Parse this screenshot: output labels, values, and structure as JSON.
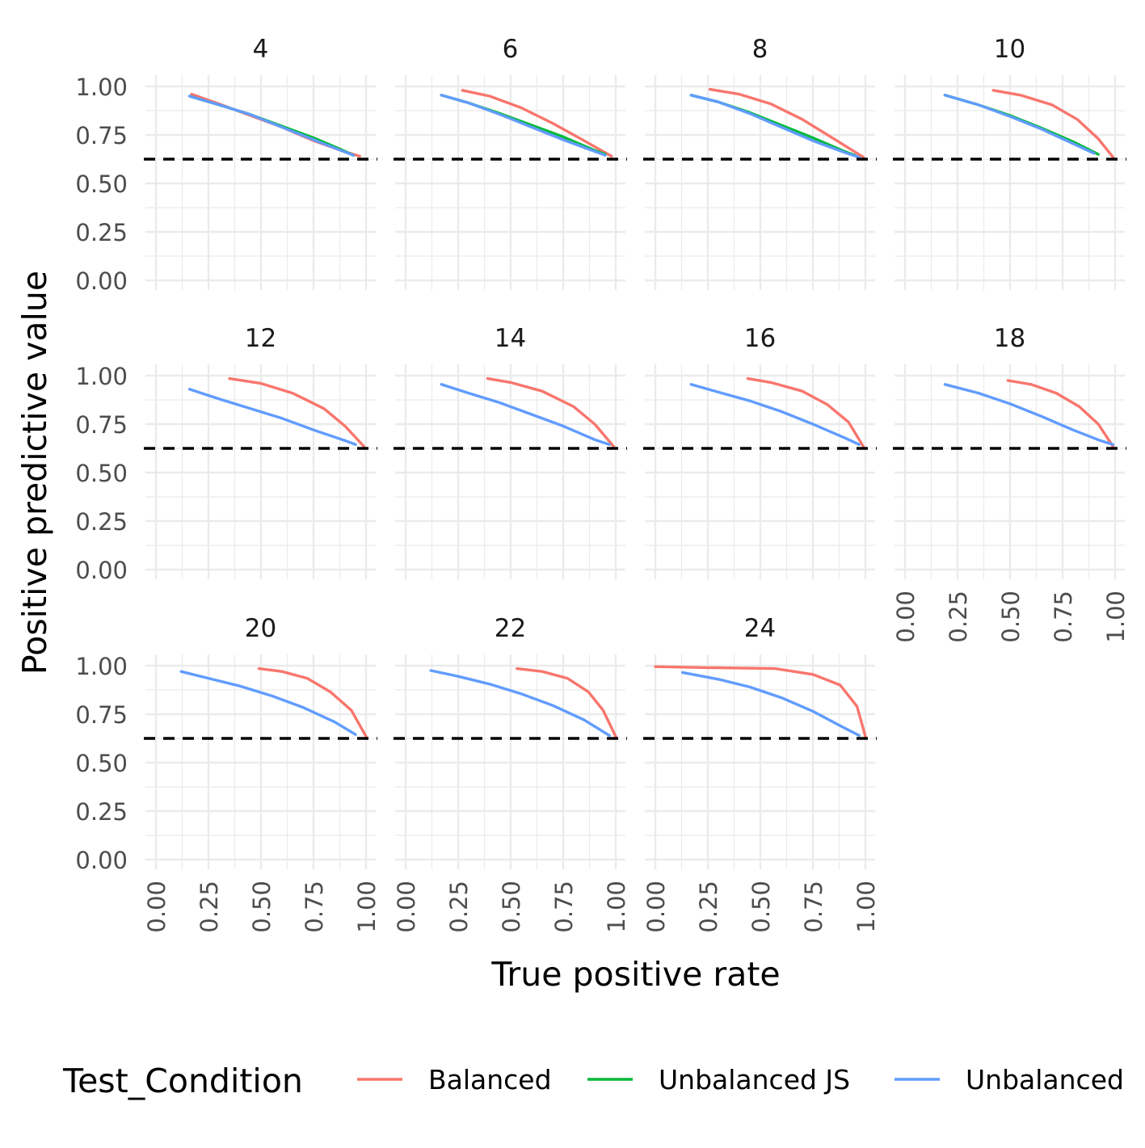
{
  "chart_data": {
    "type": "line",
    "xlabel": "True positive rate",
    "ylabel": "Positive predictive value",
    "xlim": [
      0,
      1
    ],
    "ylim": [
      0,
      1
    ],
    "x_ticks": [
      "0.00",
      "0.25",
      "0.50",
      "0.75",
      "1.00"
    ],
    "y_ticks": [
      "0.00",
      "0.25",
      "0.50",
      "0.75",
      "1.00"
    ],
    "reference_line": {
      "y": 0.625,
      "style": "dashed",
      "color": "#000000"
    },
    "grid": true,
    "legend": {
      "title": "Test_Condition",
      "position": "bottom",
      "entries": [
        {
          "name": "Balanced",
          "color": "#F8766D"
        },
        {
          "name": "Unbalanced JS",
          "color": "#00BA38"
        },
        {
          "name": "Unbalanced",
          "color": "#619CFF"
        }
      ]
    },
    "facets": [
      {
        "label": "4",
        "series": [
          {
            "name": "Balanced",
            "x": [
              0.17,
              0.3,
              0.45,
              0.6,
              0.75,
              0.88,
              0.97
            ],
            "y": [
              0.96,
              0.91,
              0.85,
              0.79,
              0.72,
              0.67,
              0.64
            ]
          },
          {
            "name": "Unbalanced JS",
            "x": [
              0.16,
              0.3,
              0.45,
              0.6,
              0.75,
              0.88,
              0.94
            ],
            "y": [
              0.95,
              0.905,
              0.855,
              0.795,
              0.735,
              0.675,
              0.645
            ]
          },
          {
            "name": "Unbalanced",
            "x": [
              0.16,
              0.3,
              0.45,
              0.6,
              0.75,
              0.88,
              0.94
            ],
            "y": [
              0.95,
              0.905,
              0.855,
              0.79,
              0.725,
              0.67,
              0.645
            ]
          }
        ]
      },
      {
        "label": "6",
        "series": [
          {
            "name": "Balanced",
            "x": [
              0.27,
              0.4,
              0.55,
              0.7,
              0.85,
              0.98
            ],
            "y": [
              0.98,
              0.95,
              0.89,
              0.81,
              0.72,
              0.64
            ]
          },
          {
            "name": "Unbalanced JS",
            "x": [
              0.17,
              0.3,
              0.45,
              0.6,
              0.75,
              0.9,
              0.95
            ],
            "y": [
              0.955,
              0.915,
              0.86,
              0.8,
              0.74,
              0.67,
              0.65
            ]
          },
          {
            "name": "Unbalanced",
            "x": [
              0.17,
              0.3,
              0.45,
              0.6,
              0.75,
              0.9,
              0.95
            ],
            "y": [
              0.955,
              0.915,
              0.855,
              0.79,
              0.725,
              0.665,
              0.645
            ]
          }
        ]
      },
      {
        "label": "8",
        "series": [
          {
            "name": "Balanced",
            "x": [
              0.26,
              0.4,
              0.55,
              0.7,
              0.85,
              0.99
            ],
            "y": [
              0.985,
              0.96,
              0.91,
              0.83,
              0.73,
              0.635
            ]
          },
          {
            "name": "Unbalanced JS",
            "x": [
              0.17,
              0.3,
              0.45,
              0.6,
              0.75,
              0.9,
              0.95
            ],
            "y": [
              0.955,
              0.92,
              0.865,
              0.8,
              0.735,
              0.665,
              0.645
            ]
          },
          {
            "name": "Unbalanced",
            "x": [
              0.17,
              0.3,
              0.45,
              0.6,
              0.75,
              0.9,
              0.97
            ],
            "y": [
              0.955,
              0.92,
              0.86,
              0.79,
              0.72,
              0.66,
              0.635
            ]
          }
        ]
      },
      {
        "label": "10",
        "series": [
          {
            "name": "Balanced",
            "x": [
              0.42,
              0.55,
              0.7,
              0.82,
              0.92,
              0.99
            ],
            "y": [
              0.98,
              0.955,
              0.905,
              0.83,
              0.73,
              0.635
            ]
          },
          {
            "name": "Unbalanced JS",
            "x": [
              0.19,
              0.35,
              0.5,
              0.65,
              0.8,
              0.92
            ],
            "y": [
              0.955,
              0.905,
              0.85,
              0.785,
              0.715,
              0.65
            ]
          },
          {
            "name": "Unbalanced",
            "x": [
              0.19,
              0.35,
              0.5,
              0.65,
              0.8,
              0.9
            ],
            "y": [
              0.955,
              0.905,
              0.845,
              0.78,
              0.705,
              0.655
            ]
          }
        ]
      },
      {
        "label": "12",
        "series": [
          {
            "name": "Balanced",
            "x": [
              0.35,
              0.5,
              0.65,
              0.8,
              0.9,
              0.99
            ],
            "y": [
              0.985,
              0.96,
              0.91,
              0.83,
              0.74,
              0.635
            ]
          },
          {
            "name": "Unbalanced",
            "x": [
              0.16,
              0.3,
              0.45,
              0.6,
              0.75,
              0.9,
              0.95
            ],
            "y": [
              0.93,
              0.88,
              0.83,
              0.78,
              0.72,
              0.665,
              0.645
            ]
          }
        ]
      },
      {
        "label": "14",
        "series": [
          {
            "name": "Balanced",
            "x": [
              0.39,
              0.5,
              0.65,
              0.8,
              0.9,
              0.99
            ],
            "y": [
              0.985,
              0.965,
              0.92,
              0.84,
              0.75,
              0.635
            ]
          },
          {
            "name": "Unbalanced",
            "x": [
              0.17,
              0.3,
              0.45,
              0.6,
              0.75,
              0.9,
              0.97
            ],
            "y": [
              0.955,
              0.91,
              0.86,
              0.8,
              0.74,
              0.67,
              0.645
            ]
          }
        ]
      },
      {
        "label": "16",
        "series": [
          {
            "name": "Balanced",
            "x": [
              0.44,
              0.55,
              0.7,
              0.82,
              0.92,
              0.99
            ],
            "y": [
              0.985,
              0.965,
              0.92,
              0.85,
              0.76,
              0.635
            ]
          },
          {
            "name": "Unbalanced",
            "x": [
              0.17,
              0.3,
              0.45,
              0.6,
              0.75,
              0.9,
              0.97
            ],
            "y": [
              0.955,
              0.915,
              0.87,
              0.815,
              0.75,
              0.68,
              0.645
            ]
          }
        ]
      },
      {
        "label": "18",
        "series": [
          {
            "name": "Balanced",
            "x": [
              0.49,
              0.6,
              0.72,
              0.83,
              0.92,
              0.99
            ],
            "y": [
              0.975,
              0.955,
              0.91,
              0.84,
              0.75,
              0.635
            ]
          },
          {
            "name": "Unbalanced",
            "x": [
              0.19,
              0.35,
              0.5,
              0.65,
              0.8,
              0.93,
              0.99
            ],
            "y": [
              0.955,
              0.91,
              0.855,
              0.79,
              0.72,
              0.665,
              0.645
            ]
          }
        ]
      },
      {
        "label": "20",
        "series": [
          {
            "name": "Balanced",
            "x": [
              0.49,
              0.6,
              0.72,
              0.83,
              0.93,
              1.0
            ],
            "y": [
              0.985,
              0.97,
              0.935,
              0.865,
              0.77,
              0.635
            ]
          },
          {
            "name": "Unbalanced",
            "x": [
              0.12,
              0.25,
              0.4,
              0.55,
              0.7,
              0.85,
              0.95
            ],
            "y": [
              0.97,
              0.935,
              0.895,
              0.845,
              0.785,
              0.71,
              0.645
            ]
          }
        ]
      },
      {
        "label": "22",
        "series": [
          {
            "name": "Balanced",
            "x": [
              0.53,
              0.65,
              0.77,
              0.87,
              0.94,
              1.0
            ],
            "y": [
              0.985,
              0.97,
              0.935,
              0.865,
              0.77,
              0.635
            ]
          },
          {
            "name": "Unbalanced",
            "x": [
              0.12,
              0.25,
              0.4,
              0.55,
              0.7,
              0.85,
              0.97
            ],
            "y": [
              0.975,
              0.945,
              0.905,
              0.855,
              0.795,
              0.72,
              0.64
            ]
          }
        ]
      },
      {
        "label": "24",
        "series": [
          {
            "name": "Balanced",
            "x": [
              0.0,
              0.25,
              0.57,
              0.75,
              0.88,
              0.96,
              1.0
            ],
            "y": [
              0.995,
              0.99,
              0.985,
              0.955,
              0.9,
              0.79,
              0.635
            ]
          },
          {
            "name": "Unbalanced",
            "x": [
              0.13,
              0.3,
              0.45,
              0.6,
              0.75,
              0.88,
              0.97
            ],
            "y": [
              0.965,
              0.93,
              0.89,
              0.835,
              0.765,
              0.69,
              0.64
            ]
          }
        ]
      }
    ]
  }
}
